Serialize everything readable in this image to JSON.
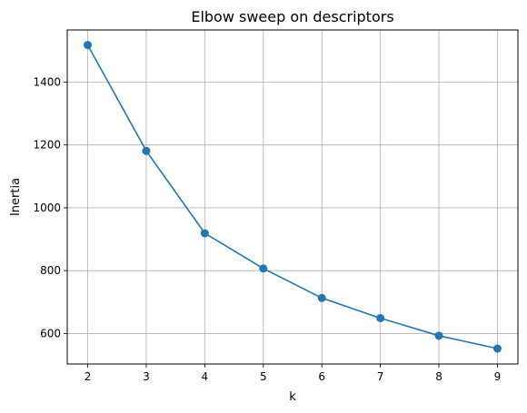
{
  "chart_data": {
    "type": "line",
    "title": "Elbow sweep on descriptors",
    "xlabel": "k",
    "ylabel": "Inertia",
    "x": [
      2,
      3,
      4,
      5,
      6,
      7,
      8,
      9
    ],
    "series": [
      {
        "values": [
          1518,
          1181,
          919,
          807,
          713,
          649,
          593,
          552
        ]
      }
    ],
    "xlim": [
      1.65,
      9.35
    ],
    "ylim": [
      503,
      1566
    ],
    "xticks": [
      2,
      3,
      4,
      5,
      6,
      7,
      8,
      9
    ],
    "yticks": [
      600,
      800,
      1000,
      1200,
      1400
    ],
    "grid": true,
    "marker": "circle",
    "color": "#1f77b4"
  }
}
